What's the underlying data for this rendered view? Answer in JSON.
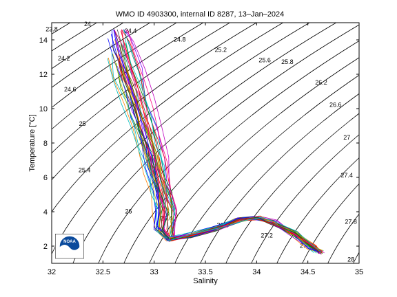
{
  "chart_data": {
    "type": "line",
    "title": "WMO ID 4903300, internal ID 8287, 13–Jan–2024",
    "xlabel": "Salinity",
    "ylabel": "Temperature [°C]",
    "xlim": [
      32,
      35
    ],
    "ylim": [
      1,
      15
    ],
    "xticks": [
      32,
      32.5,
      33,
      33.5,
      34,
      34.5,
      35
    ],
    "xtick_labels": [
      "32",
      "32.5",
      "33",
      "33.5",
      "34",
      "34.5",
      "35"
    ],
    "yticks": [
      2,
      4,
      6,
      8,
      10,
      12,
      14
    ],
    "ytick_labels": [
      "2",
      "4",
      "6",
      "8",
      "10",
      "12",
      "14"
    ],
    "grid": false,
    "legend": "none",
    "isopycnal_labels": [
      {
        "text": "23.8",
        "s": 32.0,
        "t": 14.5
      },
      {
        "text": "24",
        "s": 32.35,
        "t": 14.8
      },
      {
        "text": "24.2",
        "s": 32.12,
        "t": 12.8
      },
      {
        "text": "24.4",
        "s": 32.77,
        "t": 14.4
      },
      {
        "text": "24.6",
        "s": 32.18,
        "t": 11.0
      },
      {
        "text": "24.8",
        "s": 33.25,
        "t": 13.9
      },
      {
        "text": "25",
        "s": 32.3,
        "t": 9.0
      },
      {
        "text": "25.2",
        "s": 33.65,
        "t": 13.3
      },
      {
        "text": "25.4",
        "s": 32.32,
        "t": 6.3
      },
      {
        "text": "25.6",
        "s": 34.08,
        "t": 12.7
      },
      {
        "text": "25.8",
        "s": 34.3,
        "t": 12.6
      },
      {
        "text": "26",
        "s": 32.75,
        "t": 3.9
      },
      {
        "text": "26.2",
        "s": 34.63,
        "t": 11.4
      },
      {
        "text": "26.4",
        "s": 33.12,
        "t": 3.5
      },
      {
        "text": "26.6",
        "s": 34.77,
        "t": 10.1
      },
      {
        "text": "26.8",
        "s": 33.67,
        "t": 3.1
      },
      {
        "text": "27",
        "s": 34.88,
        "t": 8.2
      },
      {
        "text": "27.2",
        "s": 34.1,
        "t": 2.5
      },
      {
        "text": "27.4",
        "s": 34.88,
        "t": 6.0
      },
      {
        "text": "27.6",
        "s": 34.48,
        "t": 1.9
      },
      {
        "text": "27.8",
        "s": 34.92,
        "t": 3.3
      },
      {
        "text": "28",
        "s": 34.92,
        "t": 1.1
      }
    ],
    "isopycnal_sigmas": [
      23.8,
      24.0,
      24.2,
      24.4,
      24.6,
      24.8,
      25.0,
      25.2,
      25.4,
      25.6,
      25.8,
      26.0,
      26.2,
      26.4,
      26.6,
      26.8,
      27.0,
      27.2,
      27.4,
      27.6,
      27.8,
      28.0
    ],
    "profile_shape": {
      "salinity": [
        32.65,
        32.72,
        32.8,
        32.88,
        32.96,
        33.02,
        33.08,
        33.12,
        33.1,
        33.15,
        33.35,
        33.6,
        33.85,
        34.0,
        34.15,
        34.35,
        34.55,
        34.62
      ],
      "temperature": [
        14.0,
        12.5,
        11.0,
        9.5,
        8.0,
        6.6,
        5.2,
        4.0,
        3.0,
        2.4,
        2.6,
        3.0,
        3.55,
        3.65,
        3.4,
        2.8,
        1.95,
        1.65
      ]
    },
    "profile_count": 40,
    "series_colors": [
      "#0000ff",
      "#008000",
      "#ff0000",
      "#00bfbf",
      "#bf00bf",
      "#bfbf00",
      "#404040",
      "#ff8000",
      "#8000ff",
      "#008080",
      "#804000",
      "#ff0080"
    ]
  },
  "logo": {
    "text": "NOAA",
    "color": "#0a4a9c"
  }
}
